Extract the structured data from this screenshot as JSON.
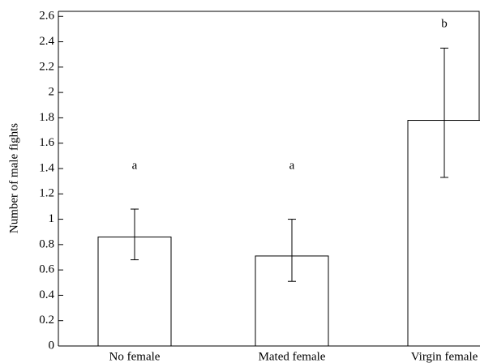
{
  "chart_data": {
    "type": "bar",
    "y_label": "Number of male fights",
    "categories": [
      "No female",
      "Mated female",
      "Virgin female"
    ],
    "values": [
      0.86,
      0.71,
      1.78
    ],
    "error_lower": [
      0.68,
      0.51,
      1.33
    ],
    "error_upper": [
      1.08,
      1.0,
      2.35
    ],
    "annotations": [
      "a",
      "a",
      "b"
    ],
    "color": "#ffffff",
    "ylim": [
      0,
      2.64
    ],
    "yticks": [
      0,
      0.2,
      0.4,
      0.6,
      0.8,
      1,
      1.2,
      1.4,
      1.6,
      1.8,
      2,
      2.2,
      2.4,
      2.6
    ]
  }
}
